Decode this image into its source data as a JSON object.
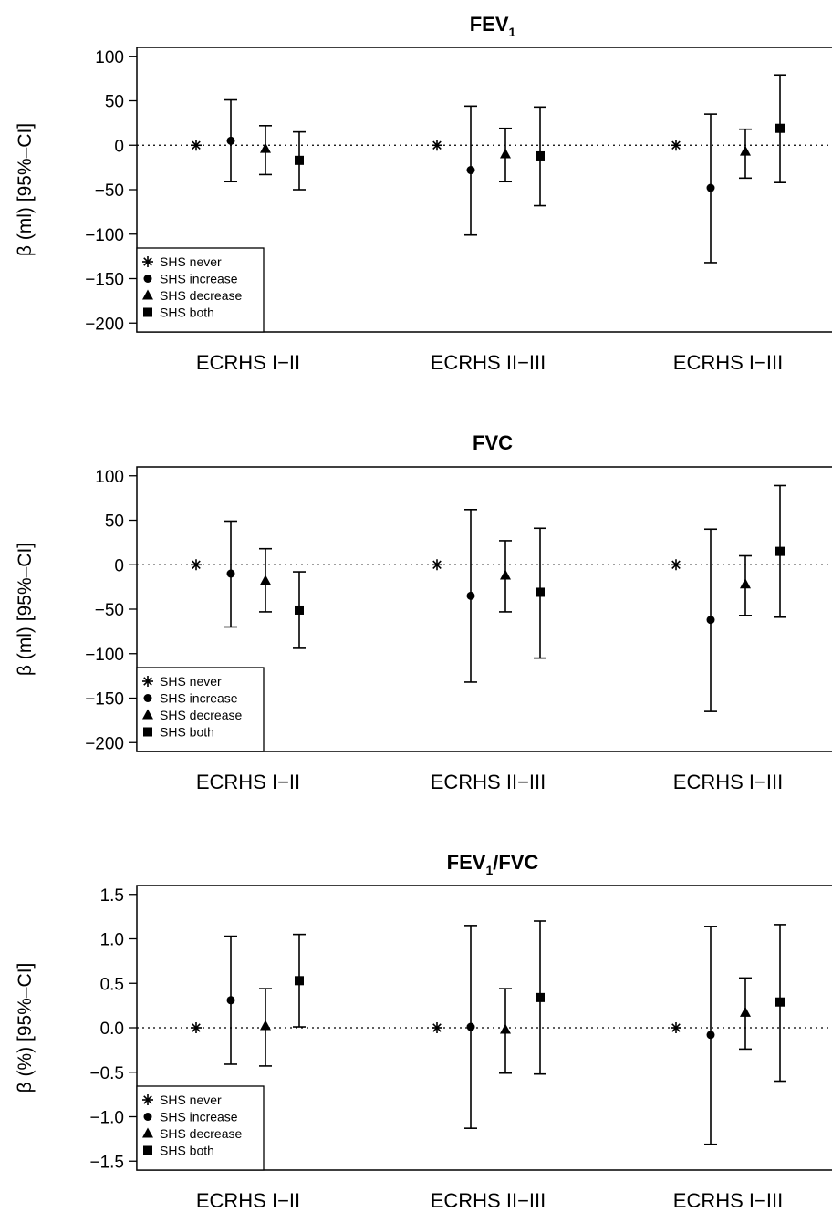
{
  "legend": {
    "entries": [
      {
        "label": "SHS never",
        "marker": "asterisk"
      },
      {
        "label": "SHS increase",
        "marker": "circle"
      },
      {
        "label": "SHS decrease",
        "marker": "triangle"
      },
      {
        "label": "SHS both",
        "marker": "square"
      }
    ],
    "placement": "bottom-left"
  },
  "chart_data": [
    {
      "type": "scatter",
      "title": "FEV",
      "title_subscript": "1",
      "title_suffix": "",
      "ylabel": "β (ml) [95%–CI]",
      "ylim": [
        -210,
        110
      ],
      "yticks": [
        {
          "value": 100,
          "label": "100"
        },
        {
          "value": 50,
          "label": "50"
        },
        {
          "value": 0,
          "label": "0"
        },
        {
          "value": -50,
          "label": "−50"
        },
        {
          "value": -100,
          "label": "−100"
        },
        {
          "value": -150,
          "label": "−150"
        },
        {
          "value": -200,
          "label": "−200"
        }
      ],
      "reference_line": 0,
      "grid": false,
      "categories": [
        "ECRHS I−II",
        "ECRHS II−III",
        "ECRHS I−III"
      ],
      "series": [
        {
          "name": "SHS never",
          "marker": "asterisk",
          "points": [
            {
              "est": 0,
              "lo": null,
              "hi": null
            },
            {
              "est": 0,
              "lo": null,
              "hi": null
            },
            {
              "est": 0,
              "lo": null,
              "hi": null
            }
          ]
        },
        {
          "name": "SHS increase",
          "marker": "circle",
          "points": [
            {
              "est": 5,
              "lo": -41,
              "hi": 51
            },
            {
              "est": -28,
              "lo": -101,
              "hi": 44
            },
            {
              "est": -48,
              "lo": -132,
              "hi": 35
            }
          ]
        },
        {
          "name": "SHS decrease",
          "marker": "triangle",
          "points": [
            {
              "est": -4,
              "lo": -33,
              "hi": 22
            },
            {
              "est": -10,
              "lo": -41,
              "hi": 19
            },
            {
              "est": -7,
              "lo": -37,
              "hi": 18
            }
          ]
        },
        {
          "name": "SHS both",
          "marker": "square",
          "points": [
            {
              "est": -17,
              "lo": -50,
              "hi": 15
            },
            {
              "est": -12,
              "lo": -68,
              "hi": 43
            },
            {
              "est": 19,
              "lo": -42,
              "hi": 79
            }
          ]
        }
      ]
    },
    {
      "type": "scatter",
      "title": "FVC",
      "title_subscript": "",
      "title_suffix": "",
      "ylabel": "β (ml) [95%–CI]",
      "ylim": [
        -210,
        110
      ],
      "yticks": [
        {
          "value": 100,
          "label": "100"
        },
        {
          "value": 50,
          "label": "50"
        },
        {
          "value": 0,
          "label": "0"
        },
        {
          "value": -50,
          "label": "−50"
        },
        {
          "value": -100,
          "label": "−100"
        },
        {
          "value": -150,
          "label": "−150"
        },
        {
          "value": -200,
          "label": "−200"
        }
      ],
      "reference_line": 0,
      "grid": false,
      "categories": [
        "ECRHS I−II",
        "ECRHS II−III",
        "ECRHS I−III"
      ],
      "series": [
        {
          "name": "SHS never",
          "marker": "asterisk",
          "points": [
            {
              "est": 0,
              "lo": null,
              "hi": null
            },
            {
              "est": 0,
              "lo": null,
              "hi": null
            },
            {
              "est": 0,
              "lo": null,
              "hi": null
            }
          ]
        },
        {
          "name": "SHS increase",
          "marker": "circle",
          "points": [
            {
              "est": -10,
              "lo": -70,
              "hi": 49
            },
            {
              "est": -35,
              "lo": -132,
              "hi": 62
            },
            {
              "est": -62,
              "lo": -165,
              "hi": 40
            }
          ]
        },
        {
          "name": "SHS decrease",
          "marker": "triangle",
          "points": [
            {
              "est": -18,
              "lo": -53,
              "hi": 18
            },
            {
              "est": -12,
              "lo": -53,
              "hi": 27
            },
            {
              "est": -22,
              "lo": -57,
              "hi": 10
            }
          ]
        },
        {
          "name": "SHS both",
          "marker": "square",
          "points": [
            {
              "est": -51,
              "lo": -94,
              "hi": -8
            },
            {
              "est": -31,
              "lo": -105,
              "hi": 41
            },
            {
              "est": 15,
              "lo": -59,
              "hi": 89
            }
          ]
        }
      ]
    },
    {
      "type": "scatter",
      "title": "FEV",
      "title_subscript": "1",
      "title_suffix": "/FVC",
      "ylabel": "β (%) [95%–CI]",
      "ylim": [
        -1.6,
        1.6
      ],
      "yticks": [
        {
          "value": 1.5,
          "label": "1.5"
        },
        {
          "value": 1.0,
          "label": "1.0"
        },
        {
          "value": 0.5,
          "label": "0.5"
        },
        {
          "value": 0.0,
          "label": "0.0"
        },
        {
          "value": -0.5,
          "label": "−0.5"
        },
        {
          "value": -1.0,
          "label": "−1.0"
        },
        {
          "value": -1.5,
          "label": "−1.5"
        }
      ],
      "reference_line": 0,
      "grid": false,
      "categories": [
        "ECRHS I−II",
        "ECRHS II−III",
        "ECRHS I−III"
      ],
      "series": [
        {
          "name": "SHS never",
          "marker": "asterisk",
          "points": [
            {
              "est": 0,
              "lo": null,
              "hi": null
            },
            {
              "est": 0,
              "lo": null,
              "hi": null
            },
            {
              "est": 0,
              "lo": null,
              "hi": null
            }
          ]
        },
        {
          "name": "SHS increase",
          "marker": "circle",
          "points": [
            {
              "est": 0.31,
              "lo": -0.41,
              "hi": 1.03
            },
            {
              "est": 0.01,
              "lo": -1.13,
              "hi": 1.15
            },
            {
              "est": -0.08,
              "lo": -1.31,
              "hi": 1.14
            }
          ]
        },
        {
          "name": "SHS decrease",
          "marker": "triangle",
          "points": [
            {
              "est": 0.02,
              "lo": -0.43,
              "hi": 0.44
            },
            {
              "est": -0.02,
              "lo": -0.51,
              "hi": 0.44
            },
            {
              "est": 0.17,
              "lo": -0.24,
              "hi": 0.56
            }
          ]
        },
        {
          "name": "SHS both",
          "marker": "square",
          "points": [
            {
              "est": 0.53,
              "lo": 0.01,
              "hi": 1.05
            },
            {
              "est": 0.34,
              "lo": -0.52,
              "hi": 1.2
            },
            {
              "est": 0.29,
              "lo": -0.6,
              "hi": 1.16
            }
          ]
        }
      ]
    }
  ]
}
